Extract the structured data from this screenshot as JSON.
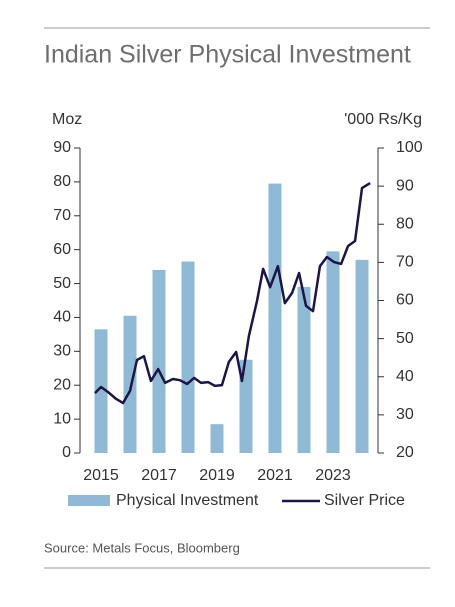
{
  "chart_data": {
    "type": "bar_line",
    "title": "Indian Silver Physical Investment",
    "ylabel": "Moz",
    "y2label": "'000 Rs/Kg",
    "source": "Source: Metals Focus, Bloomberg",
    "categories": [
      "2015",
      null,
      "2017",
      null,
      "2019",
      null,
      "2021",
      null,
      "2023",
      null
    ],
    "ylim": [
      0,
      90
    ],
    "yticks": [
      0,
      10,
      20,
      30,
      40,
      50,
      60,
      70,
      80,
      90
    ],
    "y2lim": [
      20,
      100
    ],
    "y2ticks": [
      20,
      30,
      40,
      50,
      60,
      70,
      80,
      90,
      100
    ],
    "series": [
      {
        "name": "Physical Investment",
        "type": "bar",
        "color": "#8fb9d5",
        "values": [
          36.5,
          40.5,
          54,
          56.5,
          8.5,
          27.5,
          79.5,
          49,
          59.5,
          57
        ]
      },
      {
        "name": "Silver Price",
        "type": "line",
        "axis": "y2",
        "color": "#1b1548",
        "x": [
          2014.79,
          2015,
          2015.24,
          2015.52,
          2015.76,
          2016,
          2016.24,
          2016.48,
          2016.72,
          2016.97,
          2017.21,
          2017.48,
          2017.72,
          2017.97,
          2018.21,
          2018.45,
          2018.69,
          2018.93,
          2019.17,
          2019.41,
          2019.66,
          2019.86,
          2020.1,
          2020.38,
          2020.59,
          2020.83,
          2021.1,
          2021.34,
          2021.59,
          2021.83,
          2022.07,
          2022.31,
          2022.55,
          2022.79,
          2023.03,
          2023.28,
          2023.52,
          2023.76,
          2024,
          2024.28
        ],
        "values": [
          35.7,
          37.3,
          36.0,
          34.2,
          33.1,
          36.3,
          44.4,
          45.4,
          38.9,
          42.0,
          38.4,
          39.4,
          39.1,
          38.1,
          39.7,
          38.4,
          38.6,
          37.6,
          37.8,
          43.9,
          46.5,
          38.9,
          50.7,
          59.9,
          68.3,
          63.5,
          69.0,
          59.3,
          62.0,
          67.2,
          58.6,
          57.2,
          69.0,
          71.4,
          70.1,
          69.6,
          74.3,
          75.6,
          89.5,
          90.8
        ]
      }
    ]
  }
}
